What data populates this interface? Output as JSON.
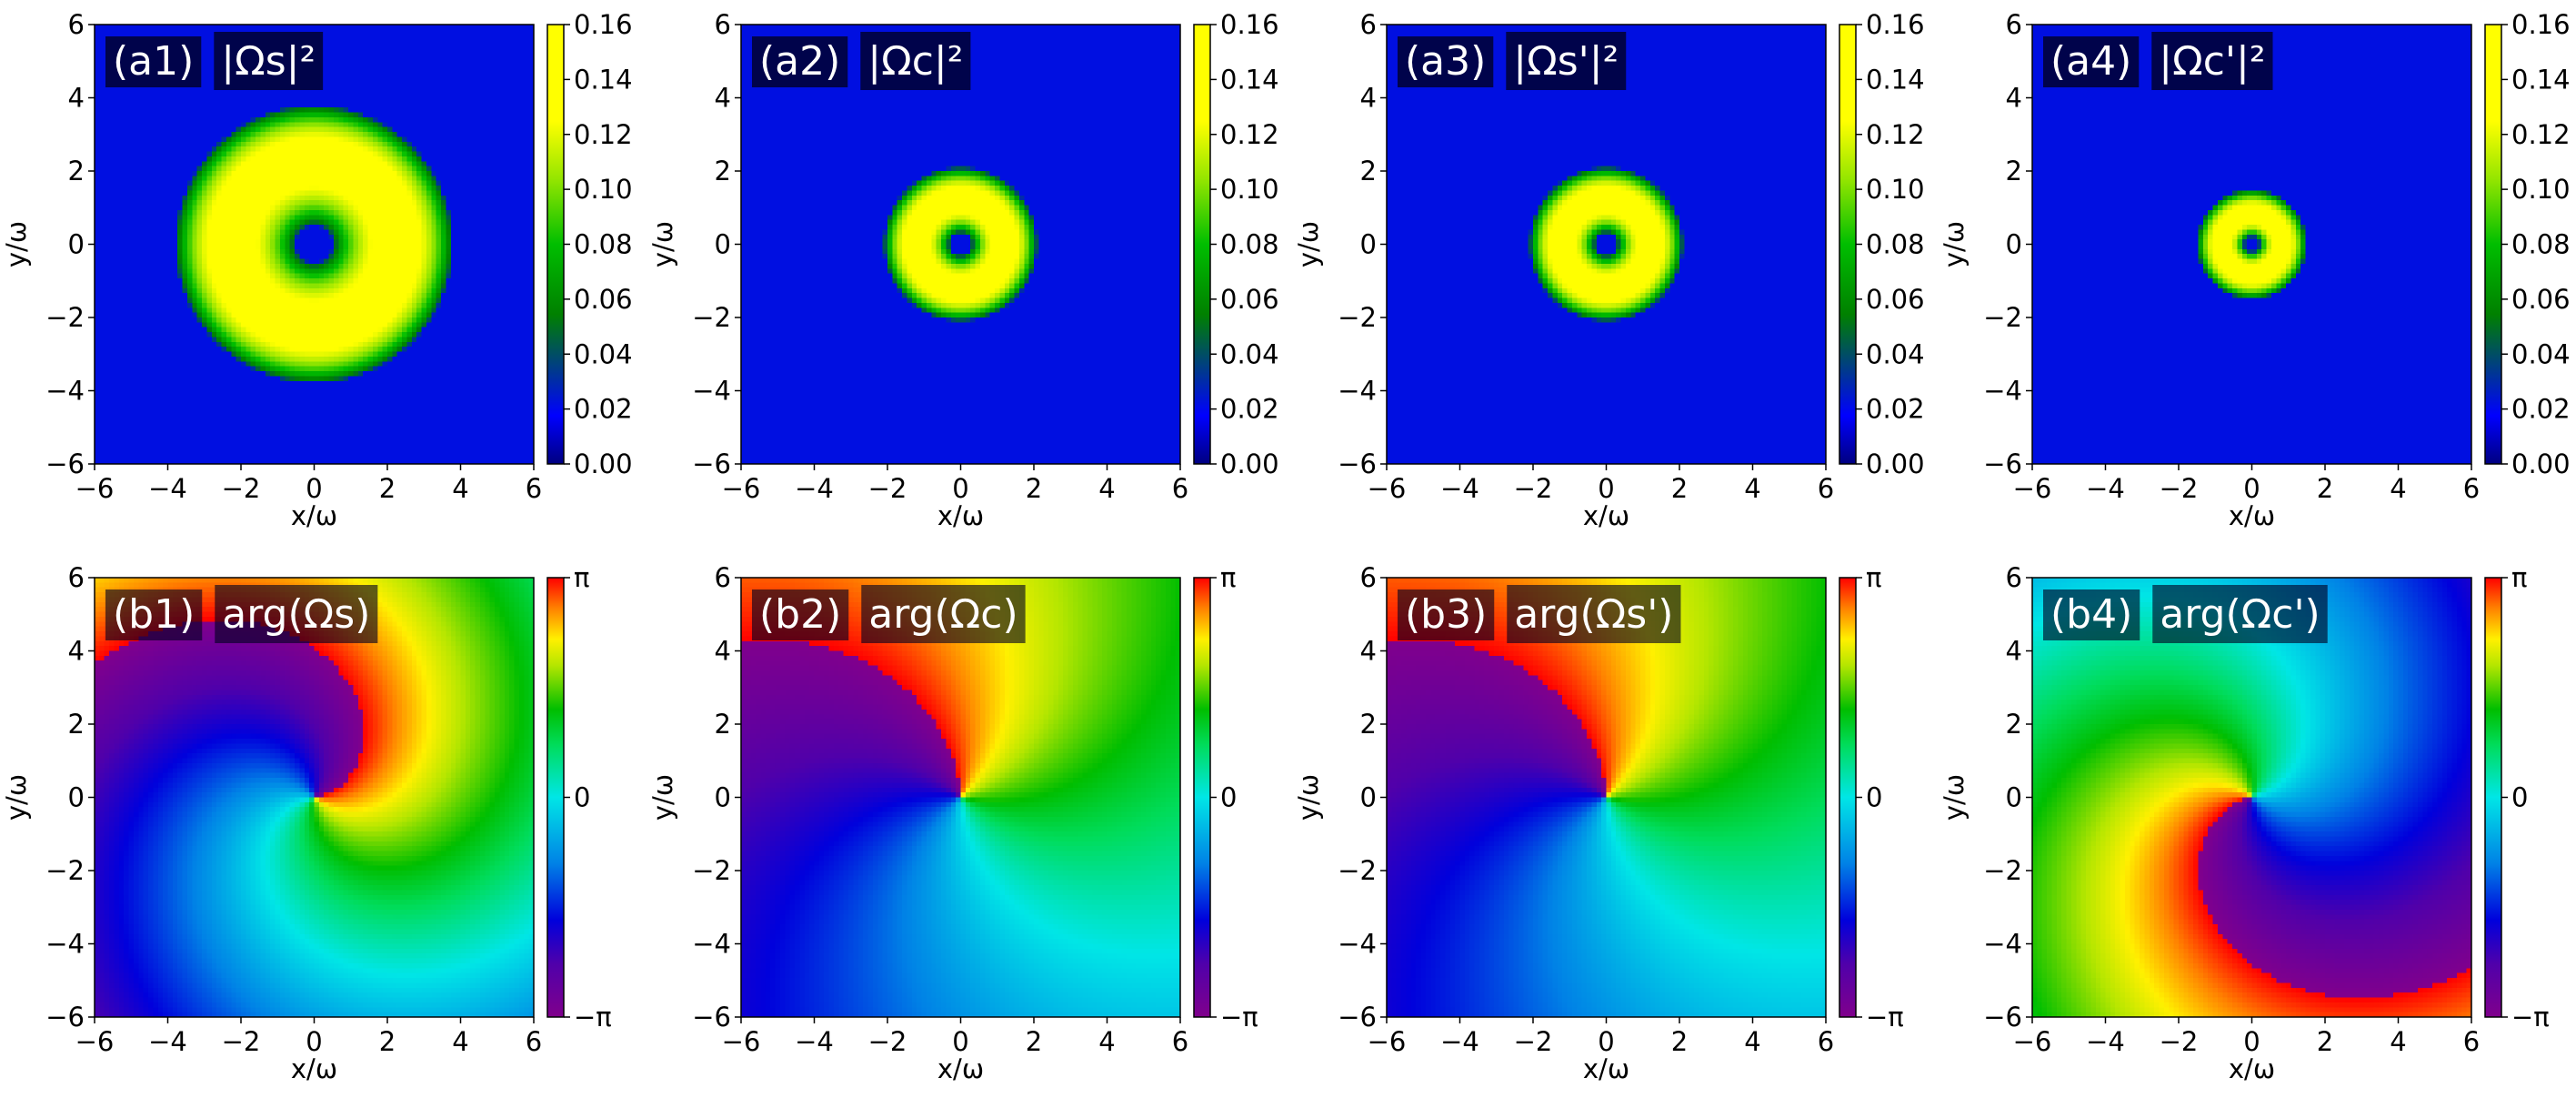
{
  "chart_data": [
    {
      "type": "heatmap",
      "id": "a1",
      "kind": "amplitude",
      "panel_label": "(a1)",
      "quantity_label": "|Ωs|²",
      "xlabel": "x/ω",
      "ylabel": "y/ω",
      "xlim": [
        -6,
        6
      ],
      "ylim": [
        -6,
        6
      ],
      "xticks": [
        -6,
        -4,
        -2,
        0,
        2,
        4,
        6
      ],
      "yticks": [
        -6,
        -4,
        -2,
        0,
        2,
        4,
        6
      ],
      "xtick_labels": [
        "−6",
        "−4",
        "−2",
        "0",
        "2",
        "4",
        "6"
      ],
      "ytick_labels": [
        "−6",
        "−4",
        "−2",
        "0",
        "2",
        "4",
        "6"
      ],
      "colormap": "jet",
      "clim": [
        0,
        0.16
      ],
      "cbar_ticks": [
        0,
        0.02,
        0.04,
        0.06,
        0.08,
        0.1,
        0.12,
        0.14,
        0.16
      ],
      "cbar_tick_labels": [
        "0.00",
        "0.02",
        "0.04",
        "0.06",
        "0.08",
        "0.10",
        "0.12",
        "0.14",
        "0.16"
      ],
      "ring": {
        "peak_value": 0.14,
        "inner_zero_radius": 0.5,
        "peak_radius": 2.3,
        "outer_edge_radius": 3.8
      }
    },
    {
      "type": "heatmap",
      "id": "a2",
      "kind": "amplitude",
      "panel_label": "(a2)",
      "quantity_label": "|Ωc|²",
      "xlabel": "x/ω",
      "ylabel": "y/ω",
      "xlim": [
        -6,
        6
      ],
      "ylim": [
        -6,
        6
      ],
      "xticks": [
        -6,
        -4,
        -2,
        0,
        2,
        4,
        6
      ],
      "yticks": [
        -6,
        -4,
        -2,
        0,
        2,
        4,
        6
      ],
      "xtick_labels": [
        "−6",
        "−4",
        "−2",
        "0",
        "2",
        "4",
        "6"
      ],
      "ytick_labels": [
        "−6",
        "−4",
        "−2",
        "0",
        "2",
        "4",
        "6"
      ],
      "colormap": "jet",
      "clim": [
        0,
        0.16
      ],
      "cbar_ticks": [
        0,
        0.02,
        0.04,
        0.06,
        0.08,
        0.1,
        0.12,
        0.14,
        0.16
      ],
      "cbar_tick_labels": [
        "0.00",
        "0.02",
        "0.04",
        "0.06",
        "0.08",
        "0.10",
        "0.12",
        "0.14",
        "0.16"
      ],
      "ring": {
        "peak_value": 0.14,
        "inner_zero_radius": 0.3,
        "peak_radius": 1.2,
        "outer_edge_radius": 2.1
      }
    },
    {
      "type": "heatmap",
      "id": "a3",
      "kind": "amplitude",
      "panel_label": "(a3)",
      "quantity_label": "|Ωs'|²",
      "xlabel": "x/ω",
      "ylabel": "y/ω",
      "xlim": [
        -6,
        6
      ],
      "ylim": [
        -6,
        6
      ],
      "xticks": [
        -6,
        -4,
        -2,
        0,
        2,
        4,
        6
      ],
      "yticks": [
        -6,
        -4,
        -2,
        0,
        2,
        4,
        6
      ],
      "xtick_labels": [
        "−6",
        "−4",
        "−2",
        "0",
        "2",
        "4",
        "6"
      ],
      "ytick_labels": [
        "−6",
        "−4",
        "−2",
        "0",
        "2",
        "4",
        "6"
      ],
      "colormap": "jet",
      "clim": [
        0,
        0.16
      ],
      "cbar_ticks": [
        0,
        0.02,
        0.04,
        0.06,
        0.08,
        0.1,
        0.12,
        0.14,
        0.16
      ],
      "cbar_tick_labels": [
        "0.00",
        "0.02",
        "0.04",
        "0.06",
        "0.08",
        "0.10",
        "0.12",
        "0.14",
        "0.16"
      ],
      "ring": {
        "peak_value": 0.14,
        "inner_zero_radius": 0.3,
        "peak_radius": 1.2,
        "outer_edge_radius": 2.1
      }
    },
    {
      "type": "heatmap",
      "id": "a4",
      "kind": "amplitude",
      "panel_label": "(a4)",
      "quantity_label": "|Ωc'|²",
      "xlabel": "x/ω",
      "ylabel": "y/ω",
      "xlim": [
        -6,
        6
      ],
      "ylim": [
        -6,
        6
      ],
      "xticks": [
        -6,
        -4,
        -2,
        0,
        2,
        4,
        6
      ],
      "yticks": [
        -6,
        -4,
        -2,
        0,
        2,
        4,
        6
      ],
      "xtick_labels": [
        "−6",
        "−4",
        "−2",
        "0",
        "2",
        "4",
        "6"
      ],
      "ytick_labels": [
        "−6",
        "−4",
        "−2",
        "0",
        "2",
        "4",
        "6"
      ],
      "colormap": "jet",
      "clim": [
        0,
        0.16
      ],
      "cbar_ticks": [
        0,
        0.02,
        0.04,
        0.06,
        0.08,
        0.1,
        0.12,
        0.14,
        0.16
      ],
      "cbar_tick_labels": [
        "0.00",
        "0.02",
        "0.04",
        "0.06",
        "0.08",
        "0.10",
        "0.12",
        "0.14",
        "0.16"
      ],
      "ring": {
        "peak_value": 0.14,
        "inner_zero_radius": 0.2,
        "peak_radius": 0.8,
        "outer_edge_radius": 1.5
      }
    },
    {
      "type": "heatmap",
      "id": "b1",
      "kind": "phase",
      "panel_label": "(b1)",
      "quantity_label": "arg(Ωs)",
      "xlabel": "x/ω",
      "ylabel": "y/ω",
      "xlim": [
        -6,
        6
      ],
      "ylim": [
        -6,
        6
      ],
      "xticks": [
        -6,
        -4,
        -2,
        0,
        2,
        4,
        6
      ],
      "yticks": [
        -6,
        -4,
        -2,
        0,
        2,
        4,
        6
      ],
      "xtick_labels": [
        "−6",
        "−4",
        "−2",
        "0",
        "2",
        "4",
        "6"
      ],
      "ytick_labels": [
        "−6",
        "−4",
        "−2",
        "0",
        "2",
        "4",
        "6"
      ],
      "colormap": "nipy_spectral",
      "clim": [
        -3.14159,
        3.14159
      ],
      "cbar_ticks": [
        -3.14159,
        0,
        3.14159
      ],
      "cbar_tick_labels": [
        "−π",
        "0",
        "π"
      ],
      "phase": {
        "winding": 1,
        "offset_rad": 3.0,
        "spiral": 0.35
      }
    },
    {
      "type": "heatmap",
      "id": "b2",
      "kind": "phase",
      "panel_label": "(b2)",
      "quantity_label": "arg(Ωc)",
      "xlabel": "x/ω",
      "ylabel": "y/ω",
      "xlim": [
        -6,
        6
      ],
      "ylim": [
        -6,
        6
      ],
      "xticks": [
        -6,
        -4,
        -2,
        0,
        2,
        4,
        6
      ],
      "yticks": [
        -6,
        -4,
        -2,
        0,
        2,
        4,
        6
      ],
      "xtick_labels": [
        "−6",
        "−4",
        "−2",
        "0",
        "2",
        "4",
        "6"
      ],
      "ytick_labels": [
        "−6",
        "−4",
        "−2",
        "0",
        "2",
        "4",
        "6"
      ],
      "colormap": "nipy_spectral",
      "clim": [
        -3.14159,
        3.14159
      ],
      "cbar_ticks": [
        -3.14159,
        0,
        3.14159
      ],
      "cbar_tick_labels": [
        "−π",
        "0",
        "π"
      ],
      "phase": {
        "winding": 1,
        "offset_rad": 1.5,
        "spiral": 0.12
      }
    },
    {
      "type": "heatmap",
      "id": "b3",
      "kind": "phase",
      "panel_label": "(b3)",
      "quantity_label": "arg(Ωs')",
      "xlabel": "x/ω",
      "ylabel": "y/ω",
      "xlim": [
        -6,
        6
      ],
      "ylim": [
        -6,
        6
      ],
      "xticks": [
        -6,
        -4,
        -2,
        0,
        2,
        4,
        6
      ],
      "yticks": [
        -6,
        -4,
        -2,
        0,
        2,
        4,
        6
      ],
      "xtick_labels": [
        "−6",
        "−4",
        "−2",
        "0",
        "2",
        "4",
        "6"
      ],
      "ytick_labels": [
        "−6",
        "−4",
        "−2",
        "0",
        "2",
        "4",
        "6"
      ],
      "colormap": "nipy_spectral",
      "clim": [
        -3.14159,
        3.14159
      ],
      "cbar_ticks": [
        -3.14159,
        0,
        3.14159
      ],
      "cbar_tick_labels": [
        "−π",
        "0",
        "π"
      ],
      "phase": {
        "winding": 1,
        "offset_rad": 1.5,
        "spiral": 0.12
      }
    },
    {
      "type": "heatmap",
      "id": "b4",
      "kind": "phase",
      "panel_label": "(b4)",
      "quantity_label": "arg(Ωc')",
      "xlabel": "x/ω",
      "ylabel": "y/ω",
      "xlim": [
        -6,
        6
      ],
      "ylim": [
        -6,
        6
      ],
      "xticks": [
        -6,
        -4,
        -2,
        0,
        2,
        4,
        6
      ],
      "yticks": [
        -6,
        -4,
        -2,
        0,
        2,
        4,
        6
      ],
      "xtick_labels": [
        "−6",
        "−4",
        "−2",
        "0",
        "2",
        "4",
        "6"
      ],
      "ytick_labels": [
        "−6",
        "−4",
        "−2",
        "0",
        "2",
        "4",
        "6"
      ],
      "colormap": "nipy_spectral",
      "clim": [
        -3.14159,
        3.14159
      ],
      "cbar_ticks": [
        -3.14159,
        0,
        3.14159
      ],
      "cbar_tick_labels": [
        "−π",
        "0",
        "π"
      ],
      "phase": {
        "winding": 1,
        "offset_rad": -0.2,
        "spiral": 0.3
      }
    }
  ]
}
